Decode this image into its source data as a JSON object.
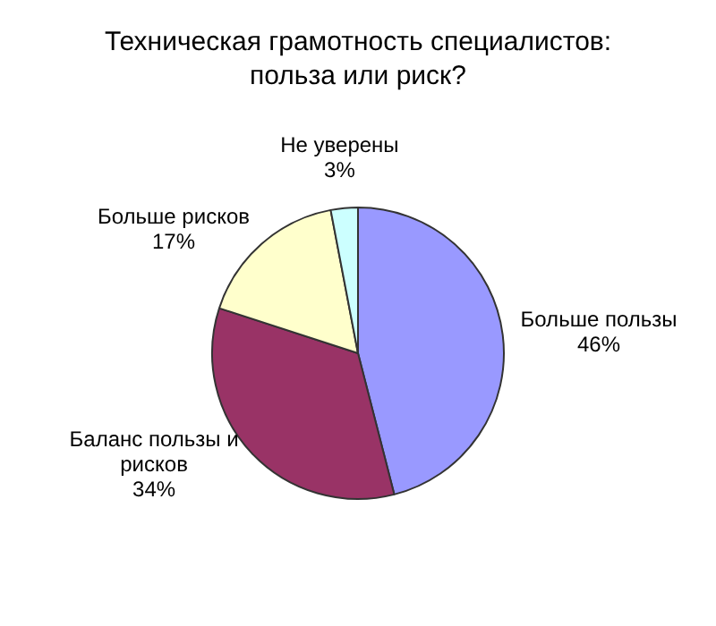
{
  "chart_data": {
    "type": "pie",
    "title": "Техническая грамотность специалистов: польза или риск?",
    "categories": [
      "Больше пользы",
      "Баланс пользы и рисков",
      "Больше рисков",
      "Не уверены"
    ],
    "values": [
      46,
      34,
      17,
      3
    ],
    "colors": [
      "#9999ff",
      "#993366",
      "#ffffcc",
      "#ccffff"
    ],
    "value_labels": [
      "46%",
      "34%",
      "17%",
      "3%"
    ],
    "legend": false
  }
}
